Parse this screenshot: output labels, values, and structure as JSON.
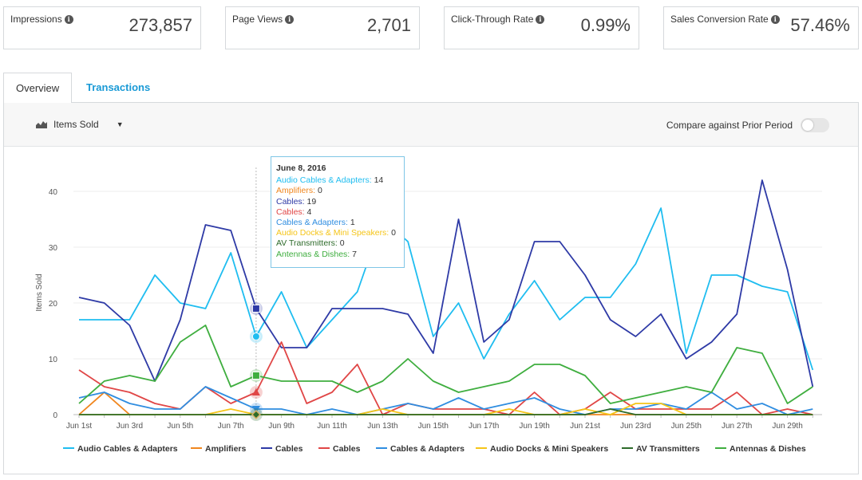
{
  "kpis": [
    {
      "label": "Impressions",
      "value": "273,857"
    },
    {
      "label": "Page Views",
      "value": "2,701"
    },
    {
      "label": "Click-Through Rate",
      "value": "0.99%"
    },
    {
      "label": "Sales Conversion Rate",
      "value": "57.46%"
    }
  ],
  "tabs": {
    "overview": "Overview",
    "transactions": "Transactions"
  },
  "toolbar": {
    "metric": "Items Sold",
    "compare": "Compare against Prior Period"
  },
  "tooltip": {
    "date": "June 8, 2016",
    "rows": [
      {
        "name": "Audio Cables & Adapters",
        "value": "14"
      },
      {
        "name": "Amplifiers",
        "value": "0"
      },
      {
        "name": "Cables",
        "value": "19"
      },
      {
        "name": "Cables",
        "value": "4"
      },
      {
        "name": "Cables & Adapters",
        "value": "1"
      },
      {
        "name": "Audio Docks & Mini Speakers",
        "value": "0"
      },
      {
        "name": "AV Transmitters",
        "value": "0"
      },
      {
        "name": "Antennas & Dishes",
        "value": "7"
      }
    ]
  },
  "chart_data": {
    "type": "line",
    "ylabel": "Items Sold",
    "xlabel": "",
    "ylim": [
      0,
      45
    ],
    "yticks": [
      0,
      10,
      20,
      30,
      40
    ],
    "x": [
      "Jun 1st",
      "Jun 2nd",
      "Jun 3rd",
      "Jun 4th",
      "Jun 5th",
      "Jun 6th",
      "Jun 7th",
      "Jun 8th",
      "Jun 9th",
      "Jun 10th",
      "Jun 11th",
      "Jun 12th",
      "Jun 13th",
      "Jun 14th",
      "Jun 15th",
      "Jun 16th",
      "Jun 17th",
      "Jun 18th",
      "Jun 19th",
      "Jun 20th",
      "Jun 21st",
      "Jun 22nd",
      "Jun 23rd",
      "Jun 24th",
      "Jun 25th",
      "Jun 26th",
      "Jun 27th",
      "Jun 28th",
      "Jun 29th",
      "Jun 30th"
    ],
    "xtick_labels": [
      "Jun 1st",
      "Jun 3rd",
      "Jun 5th",
      "Jun 7th",
      "Jun 9th",
      "Jun 11th",
      "Jun 13th",
      "Jun 15th",
      "Jun 17th",
      "Jun 19th",
      "Jun 21st",
      "Jun 23rd",
      "Jun 25th",
      "Jun 27th",
      "Jun 29th"
    ],
    "legend_position": "bottom",
    "highlight_index": 7,
    "series": [
      {
        "name": "Audio Cables & Adapters",
        "color": "#1fbdf0",
        "marker": "circle",
        "values": [
          17,
          17,
          17,
          25,
          20,
          19,
          29,
          14,
          22,
          12,
          17,
          22,
          35,
          31,
          14,
          20,
          10,
          18,
          24,
          17,
          21,
          21,
          27,
          37,
          11,
          25,
          25,
          23,
          22,
          8
        ]
      },
      {
        "name": "Amplifiers",
        "color": "#f0861e",
        "marker": "none",
        "values": [
          0,
          4,
          0,
          0,
          0,
          0,
          0,
          0,
          0,
          0,
          0,
          0,
          0,
          0,
          0,
          0,
          0,
          0,
          0,
          0,
          0,
          0,
          0,
          0,
          0,
          0,
          0,
          0,
          0,
          0
        ]
      },
      {
        "name": "Cables",
        "color": "#2e3aa6",
        "marker": "square",
        "values": [
          21,
          20,
          16,
          6,
          17,
          34,
          33,
          19,
          12,
          12,
          19,
          19,
          19,
          18,
          11,
          35,
          13,
          17,
          31,
          31,
          25,
          17,
          14,
          18,
          10,
          13,
          18,
          42,
          26,
          5
        ]
      },
      {
        "name": "Cables",
        "color": "#e04646",
        "marker": "triangle",
        "values": [
          8,
          5,
          4,
          2,
          1,
          5,
          2,
          4,
          13,
          2,
          4,
          9,
          0,
          2,
          1,
          1,
          1,
          0,
          4,
          0,
          1,
          4,
          1,
          1,
          1,
          1,
          4,
          0,
          1,
          0
        ]
      },
      {
        "name": "Cables & Adapters",
        "color": "#2f8de0",
        "marker": "triangle-down",
        "values": [
          3,
          4,
          2,
          1,
          1,
          5,
          3,
          1,
          1,
          0,
          1,
          0,
          1,
          2,
          1,
          3,
          1,
          2,
          3,
          1,
          0,
          1,
          1,
          2,
          1,
          4,
          1,
          2,
          0,
          1
        ]
      },
      {
        "name": "Audio Docks & Mini Speakers",
        "color": "#f5c518",
        "marker": "none",
        "values": [
          0,
          0,
          0,
          0,
          0,
          0,
          1,
          0,
          0,
          0,
          0,
          0,
          1,
          0,
          0,
          0,
          0,
          1,
          0,
          0,
          1,
          0,
          2,
          2,
          0,
          0,
          0,
          0,
          0,
          0
        ]
      },
      {
        "name": "AV Transmitters",
        "color": "#2d6b2a",
        "marker": "diamond",
        "values": [
          0,
          0,
          0,
          0,
          0,
          0,
          0,
          0,
          0,
          0,
          0,
          0,
          0,
          0,
          0,
          0,
          0,
          0,
          0,
          0,
          0,
          1,
          0,
          0,
          0,
          0,
          0,
          0,
          0,
          0
        ]
      },
      {
        "name": "Antennas & Dishes",
        "color": "#3fae3f",
        "marker": "square",
        "values": [
          2,
          6,
          7,
          6,
          13,
          16,
          5,
          7,
          6,
          6,
          6,
          4,
          6,
          10,
          6,
          4,
          5,
          6,
          9,
          9,
          7,
          2,
          3,
          4,
          5,
          4,
          12,
          11,
          2,
          5
        ]
      }
    ]
  }
}
